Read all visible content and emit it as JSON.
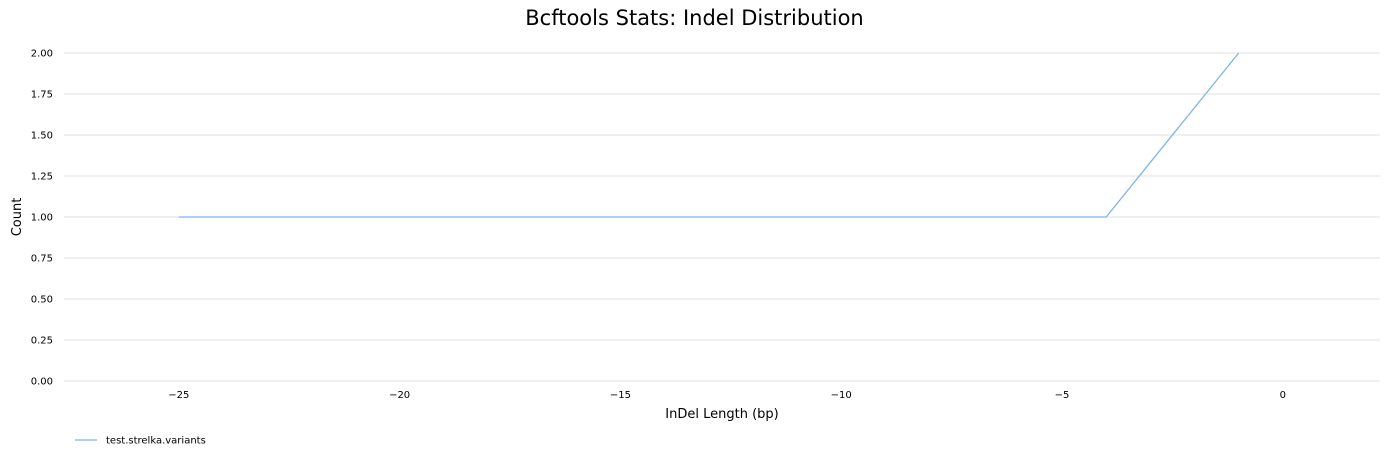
{
  "chart_data": {
    "type": "line",
    "title": "Bcftools Stats: Indel Distribution",
    "xlabel": "InDel Length (bp)",
    "ylabel": "Count",
    "xlim": [
      -27.6,
      2.2
    ],
    "ylim": [
      0,
      2.0
    ],
    "xticks": [
      -25,
      -20,
      -15,
      -10,
      -5,
      0
    ],
    "xtick_labels": [
      "−25",
      "−20",
      "−15",
      "−10",
      "−5",
      "0"
    ],
    "yticks": [
      0,
      0.25,
      0.5,
      0.75,
      1.0,
      1.25,
      1.5,
      1.75,
      2.0
    ],
    "ytick_labels": [
      "0.00",
      "0.25",
      "0.50",
      "0.75",
      "1.00",
      "1.25",
      "1.50",
      "1.75",
      "2.00"
    ],
    "grid": true,
    "legend_position": "bottom-left",
    "series": [
      {
        "name": "test.strelka.variants",
        "color": "#7cb5ec",
        "x": [
          -25,
          -4,
          -1
        ],
        "y": [
          1,
          1,
          2
        ]
      }
    ]
  }
}
